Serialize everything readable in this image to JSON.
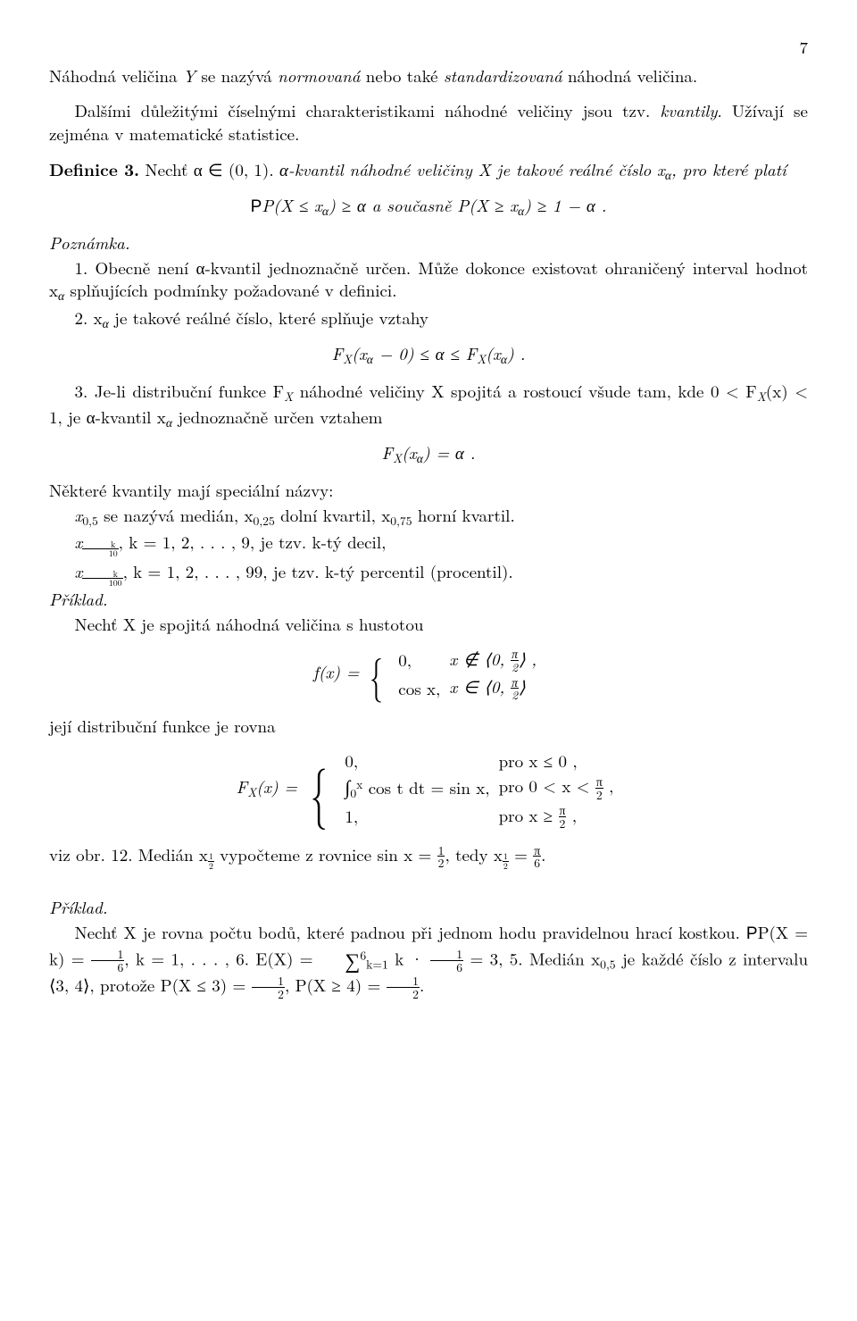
{
  "page_number": "7",
  "p1a": "Náhodná veličina ",
  "p1b": " se nazývá ",
  "p1c": "normovaná",
  "p1d": " nebo také ",
  "p1e": "standardizovaná",
  "p1f": " náhodná veličina.",
  "p2a": "Dalšími důležitými číselnými charakteristikami náhodné veličiny jsou tzv. ",
  "p2b": "kvantily",
  "p2c": ". Užívají se zejména v matematické statistice.",
  "def_label": "Definice 3.",
  "def_a": " Nechť α ∈ (0, 1). ",
  "def_b": "α-kvantil náhodné veličiny X je takové reálné číslo x",
  "def_c": ", pro které platí",
  "disp1": "P(X ≤ x",
  "disp1b": ") ≥ α    a současně    P(X ≥ x",
  "disp1c": ") ≥ 1 − α .",
  "pozn": "Poznámka.",
  "pozn1a": "1. Obecně není α-kvantil jednoznačně určen. Může dokonce existovat ohraničený interval hodnot x",
  "pozn1b": " splňujících podmínky požadované v definici.",
  "pozn2a": "2. x",
  "pozn2b": " je takové reálné číslo, které splňuje vztahy",
  "disp2a": "F",
  "disp2b": "(x",
  "disp2c": " − 0) ≤ α ≤ F",
  "disp2d": "(x",
  "disp2e": ") .",
  "pozn3a": "3. Je-li distribuční funkce F",
  "pozn3b": " náhodné veličiny X spojitá a rostoucí všude tam, kde 0 < F",
  "pozn3c": "(x) < 1, je α-kvantil x",
  "pozn3d": " jednoznačně určen vztahem",
  "disp3a": "F",
  "disp3b": "(x",
  "disp3c": ") = α .",
  "names1": "Některé kvantily mají speciální názvy:",
  "names2a": "x",
  "names2b": " se nazývá medián, x",
  "names2c": " dolní kvartil, x",
  "names2d": " horní kvartil.",
  "names3a": "x",
  "names3b": ",  k = 1, 2, . . . , 9, je tzv. k-tý decil,",
  "names4a": "x",
  "names4b": ",  k = 1, 2, . . . , 99, je tzv. k-tý percentil (procentil).",
  "ex_label": "Příklad.",
  "ex1a": "Nechť X je spojitá náhodná veličina s hustotou",
  "fx_lhs": "f(x) = ",
  "fx_r1a": "0,",
  "fx_r1b": "x ∉ ⟨0, ",
  "fx_r1c": "⟩ ,",
  "fx_r2a": "cos x,",
  "fx_r2b": "x ∈ ⟨0, ",
  "fx_r2c": "⟩",
  "ex1b": "její distribuční funkce je rovna",
  "Fx_lhs": "F",
  "Fx_lhs2": "(x) = ",
  "Fx_r1a": "0,",
  "Fx_r1b": "pro x ≤ 0 ,",
  "Fx_r2a": " cos t dt = sin x,",
  "Fx_r2b": "pro 0 < x < ",
  "Fx_r3a": "1,",
  "Fx_r3b": "pro x ≥ ",
  "ex1c_a": "viz obr. 12. Medián x",
  "ex1c_b": " vypočteme z rovnice sin x = ",
  "ex1c_c": ", tedy x",
  "ex1c_d": " = ",
  "ex1c_e": ".",
  "ex2a": "Nechť X je rovna počtu bodů, které padnou při jednom hodu pravidelnou hrací kostkou. ",
  "ex2b": "P(X = k) = ",
  "ex2c": ",  k = 1, . . . , 6.  E(X) = ",
  "ex2d": " k · ",
  "ex2e": " = 3, 5. Medián x",
  "ex2f": " je každé číslo z intervalu ⟨3, 4⟩, protože P(X ≤ 3) = ",
  "ex2g": ", P(X ≥ 4) = ",
  "ex2h": ".",
  "alpha": "α",
  "X": "X",
  "Y": "Y",
  "half_num": "1",
  "half_den": "2",
  "sixth_num": "1",
  "sixth_den": "6",
  "pi_num": "π",
  "pi_den": "2",
  "pi6_num": "π",
  "pi6_den": "6",
  "k_num": "k",
  "ten_den": "10",
  "hundred_den": "100",
  "sub05": "0,5",
  "sub025": "0,25",
  "sub075": "0,75",
  "int_lo": "0",
  "int_hi": "x",
  "sum_lo": "k=1",
  "sum_hi": "6"
}
